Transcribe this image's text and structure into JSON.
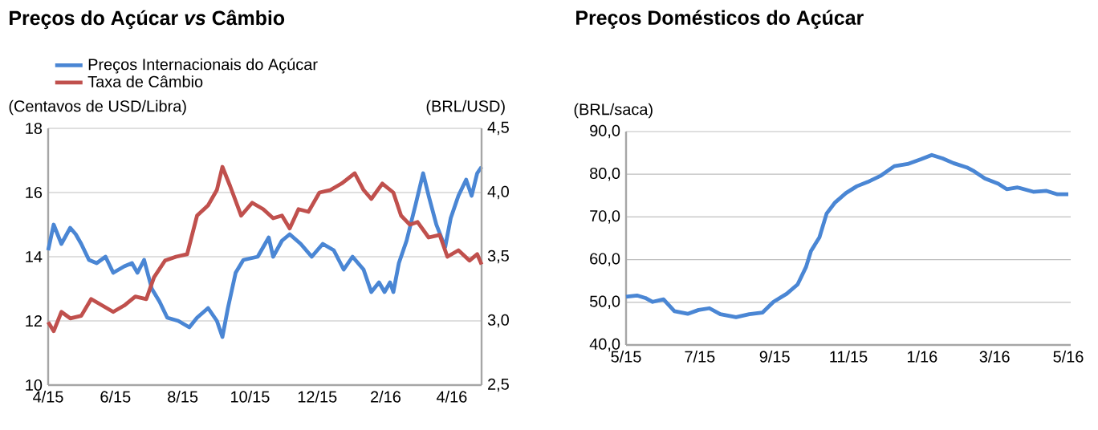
{
  "chart_data": [
    {
      "type": "line",
      "title": "Preços do Açúcar *vs* Câmbio",
      "ylabel": "(Centavos de USD/Libra)",
      "y2label": "(BRL/USD)",
      "xlim": [
        "2015-04-01",
        "2016-04-28"
      ],
      "xticks": [
        {
          "value": "2015-04-01",
          "label": "4/15"
        },
        {
          "value": "2015-06-01",
          "label": "6/15"
        },
        {
          "value": "2015-08-01",
          "label": "8/15"
        },
        {
          "value": "2015-10-01",
          "label": "10/15"
        },
        {
          "value": "2015-12-01",
          "label": "12/15"
        },
        {
          "value": "2016-02-01",
          "label": "2/16"
        },
        {
          "value": "2016-04-01",
          "label": "4/16"
        }
      ],
      "ylim": [
        10,
        18
      ],
      "yticks": [
        10,
        12,
        14,
        16,
        18
      ],
      "y2lim": [
        2.5,
        4.5
      ],
      "y2ticks": [
        {
          "value": 2.5,
          "label": "2,5"
        },
        {
          "value": 3.0,
          "label": "3,0"
        },
        {
          "value": 3.5,
          "label": "3,5"
        },
        {
          "value": 4.0,
          "label": "4,0"
        },
        {
          "value": 4.5,
          "label": "4,5"
        }
      ],
      "grid": "y",
      "legend": "top left",
      "series": [
        {
          "name": "Preços Internacionais do Açúcar",
          "color": "#4a86d4",
          "x": [
            "2015-04-01",
            "2015-04-06",
            "2015-04-13",
            "2015-04-21",
            "2015-04-26",
            "2015-05-01",
            "2015-05-08",
            "2015-05-15",
            "2015-05-23",
            "2015-05-30",
            "2015-06-09",
            "2015-06-16",
            "2015-06-21",
            "2015-06-27",
            "2015-07-04",
            "2015-07-11",
            "2015-07-18",
            "2015-07-28",
            "2015-08-07",
            "2015-08-14",
            "2015-08-24",
            "2015-09-01",
            "2015-09-06",
            "2015-09-11",
            "2015-09-18",
            "2015-09-25",
            "2015-10-08",
            "2015-10-18",
            "2015-10-22",
            "2015-10-30",
            "2015-11-06",
            "2015-11-16",
            "2015-11-26",
            "2015-12-06",
            "2015-12-16",
            "2015-12-25",
            "2016-01-02",
            "2016-01-12",
            "2016-01-19",
            "2016-01-26",
            "2016-01-31",
            "2016-02-05",
            "2016-02-08",
            "2016-02-13",
            "2016-02-20",
            "2016-02-28",
            "2016-03-06",
            "2016-03-11",
            "2016-03-18",
            "2016-03-26",
            "2016-03-31",
            "2016-04-07",
            "2016-04-14",
            "2016-04-19",
            "2016-04-24",
            "2016-04-28"
          ],
          "values": [
            14.2,
            15.0,
            14.4,
            14.9,
            14.7,
            14.4,
            13.9,
            13.8,
            14.0,
            13.5,
            13.7,
            13.8,
            13.5,
            13.9,
            13.0,
            12.6,
            12.1,
            12.0,
            11.8,
            12.1,
            12.4,
            12.0,
            11.5,
            12.4,
            13.5,
            13.9,
            14.0,
            14.6,
            14.0,
            14.5,
            14.7,
            14.4,
            14.0,
            14.4,
            14.2,
            13.6,
            14.0,
            13.6,
            12.9,
            13.2,
            12.9,
            13.2,
            12.9,
            13.8,
            14.5,
            15.6,
            16.6,
            15.9,
            15.0,
            14.3,
            15.2,
            15.9,
            16.4,
            15.9,
            16.6,
            16.8
          ]
        },
        {
          "name": "Taxa de Câmbio",
          "color": "#c0504d",
          "axis": "y2",
          "x": [
            "2015-04-01",
            "2015-04-06",
            "2015-04-13",
            "2015-04-21",
            "2015-05-01",
            "2015-05-10",
            "2015-05-20",
            "2015-05-30",
            "2015-06-09",
            "2015-06-19",
            "2015-06-29",
            "2015-07-06",
            "2015-07-16",
            "2015-07-26",
            "2015-08-05",
            "2015-08-14",
            "2015-08-24",
            "2015-09-01",
            "2015-09-06",
            "2015-09-13",
            "2015-09-23",
            "2015-10-03",
            "2015-10-13",
            "2015-10-22",
            "2015-10-30",
            "2015-11-06",
            "2015-11-14",
            "2015-11-23",
            "2015-12-03",
            "2015-12-13",
            "2015-12-23",
            "2016-01-04",
            "2016-01-12",
            "2016-01-19",
            "2016-01-29",
            "2016-02-08",
            "2016-02-15",
            "2016-02-23",
            "2016-03-01",
            "2016-03-11",
            "2016-03-21",
            "2016-03-28",
            "2016-04-07",
            "2016-04-17",
            "2016-04-24",
            "2016-04-28"
          ],
          "values": [
            2.99,
            2.92,
            3.07,
            3.02,
            3.04,
            3.17,
            3.12,
            3.07,
            3.12,
            3.19,
            3.17,
            3.34,
            3.47,
            3.5,
            3.52,
            3.82,
            3.9,
            4.02,
            4.2,
            4.05,
            3.82,
            3.92,
            3.87,
            3.8,
            3.82,
            3.72,
            3.87,
            3.85,
            4.0,
            4.02,
            4.07,
            4.15,
            4.02,
            3.95,
            4.07,
            4.0,
            3.82,
            3.75,
            3.77,
            3.65,
            3.67,
            3.5,
            3.55,
            3.47,
            3.52,
            3.44
          ]
        }
      ]
    },
    {
      "type": "line",
      "title": "Preços Domésticos do Açúcar",
      "ylabel": "(BRL/saca)",
      "xlim": [
        "2015-05-01",
        "2016-05-03"
      ],
      "xticks": [
        {
          "value": "2015-05-01",
          "label": "5/15"
        },
        {
          "value": "2015-07-01",
          "label": "7/15"
        },
        {
          "value": "2015-09-01",
          "label": "9/15"
        },
        {
          "value": "2015-11-01",
          "label": "11/15"
        },
        {
          "value": "2016-01-01",
          "label": "1/16"
        },
        {
          "value": "2016-03-01",
          "label": "3/16"
        },
        {
          "value": "2016-05-01",
          "label": "5/16"
        }
      ],
      "ylim": [
        40,
        90
      ],
      "yticks": [
        {
          "value": 40,
          "label": "40,0"
        },
        {
          "value": 50,
          "label": "50,0"
        },
        {
          "value": 60,
          "label": "60,0"
        },
        {
          "value": 70,
          "label": "70,0"
        },
        {
          "value": 80,
          "label": "80,0"
        },
        {
          "value": 90,
          "label": "90,0"
        }
      ],
      "grid": "y",
      "series": [
        {
          "color": "#4a86d4",
          "x": [
            "2015-05-01",
            "2015-05-10",
            "2015-05-17",
            "2015-05-23",
            "2015-06-01",
            "2015-06-10",
            "2015-06-21",
            "2015-06-30",
            "2015-07-09",
            "2015-07-18",
            "2015-07-31",
            "2015-08-11",
            "2015-08-22",
            "2015-08-31",
            "2015-09-11",
            "2015-09-20",
            "2015-09-27",
            "2015-10-01",
            "2015-10-08",
            "2015-10-14",
            "2015-10-21",
            "2015-10-30",
            "2015-11-08",
            "2015-11-17",
            "2015-11-28",
            "2015-12-09",
            "2015-12-20",
            "2015-12-31",
            "2016-01-09",
            "2016-01-18",
            "2016-01-27",
            "2016-02-07",
            "2016-02-13",
            "2016-02-22",
            "2016-03-04",
            "2016-03-11",
            "2016-03-20",
            "2016-04-02",
            "2016-04-13",
            "2016-04-22",
            "2016-05-01"
          ],
          "values": [
            51.3,
            51.6,
            51.0,
            50.1,
            50.7,
            47.9,
            47.3,
            48.2,
            48.6,
            47.2,
            46.5,
            47.2,
            47.6,
            50.1,
            52.0,
            54.2,
            58.3,
            62.0,
            65.2,
            70.8,
            73.4,
            75.6,
            77.2,
            78.2,
            79.7,
            81.9,
            82.4,
            83.5,
            84.5,
            83.7,
            82.6,
            81.6,
            80.7,
            79.0,
            77.8,
            76.5,
            76.9,
            75.9,
            76.1,
            75.3,
            75.3
          ]
        }
      ]
    }
  ]
}
